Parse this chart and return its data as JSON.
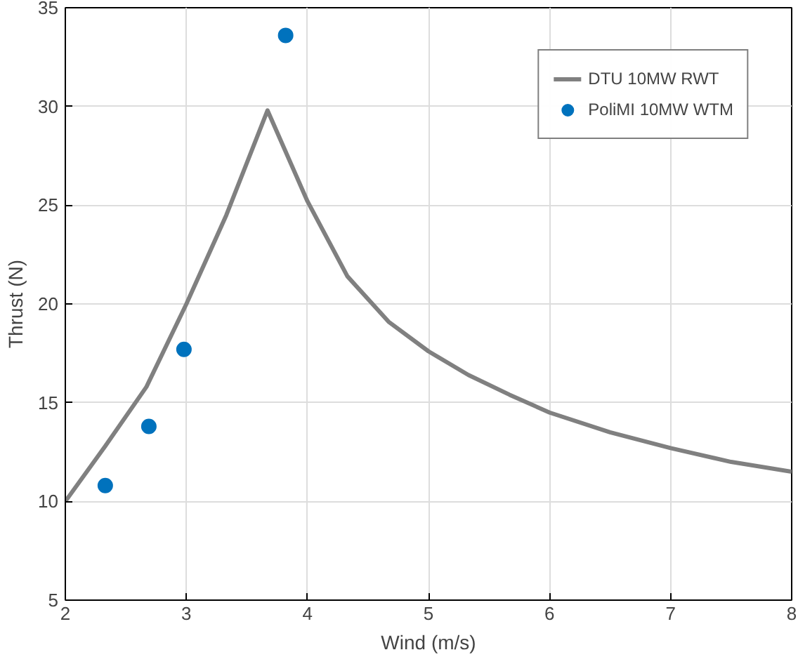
{
  "chart_data": {
    "type": "line",
    "xlabel": "Wind (m/s)",
    "ylabel": "Thrust (N)",
    "xlim": [
      2,
      8
    ],
    "ylim": [
      5,
      35
    ],
    "xticks": [
      2,
      3,
      4,
      5,
      6,
      7,
      8
    ],
    "yticks": [
      5,
      10,
      15,
      20,
      25,
      30,
      35
    ],
    "grid": true,
    "legend": "top right",
    "series": [
      {
        "name": "DTU 10MW RWT",
        "color": "#808080",
        "x": [
          2,
          2.33,
          2.67,
          3,
          3.33,
          3.67,
          4,
          4.33,
          4.67,
          5,
          5.33,
          5.67,
          6,
          6.5,
          7,
          7.5,
          8
        ],
        "values": [
          10,
          12.8,
          15.8,
          20,
          24.5,
          29.8,
          25.2,
          21.4,
          19.1,
          17.6,
          16.4,
          15.4,
          14.5,
          13.5,
          12.7,
          12.0,
          11.5
        ]
      },
      {
        "name": "PoliMI 10MW WTM",
        "type": "scatter",
        "marker": "circle",
        "color": "#0072bd",
        "x": [
          2.33,
          2.69,
          2.98,
          3.82
        ],
        "values": [
          10.8,
          13.8,
          17.7,
          33.6
        ]
      }
    ]
  }
}
